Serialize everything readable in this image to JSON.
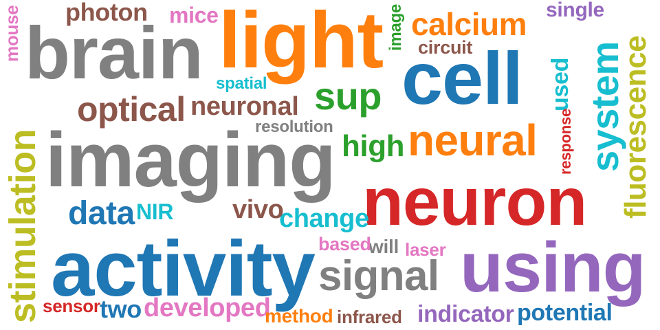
{
  "palette": {
    "gray": "#808080",
    "orange": "#ff7f0e",
    "blue": "#1f77b4",
    "red": "#d62728",
    "purple": "#9467bd",
    "green": "#2ca02c",
    "olive": "#bcbd22",
    "cyan": "#17becf",
    "brown": "#8c564b",
    "pink": "#e377c2"
  },
  "words": [
    {
      "text": "neuron",
      "color": "red"
    },
    {
      "text": "activity",
      "color": "blue"
    },
    {
      "text": "imaging",
      "color": "gray"
    },
    {
      "text": "using",
      "color": "purple"
    },
    {
      "text": "brain",
      "color": "gray"
    },
    {
      "text": "light",
      "color": "orange"
    },
    {
      "text": "cell",
      "color": "blue"
    },
    {
      "text": "signal",
      "color": "gray"
    },
    {
      "text": "neural",
      "color": "orange"
    },
    {
      "text": "stimulation",
      "color": "olive"
    },
    {
      "text": "system",
      "color": "cyan"
    },
    {
      "text": "optical",
      "color": "brown"
    },
    {
      "text": "neuronal",
      "color": "brown"
    },
    {
      "text": "fluorescence",
      "color": "olive"
    },
    {
      "text": "sup",
      "color": "green"
    },
    {
      "text": "data",
      "color": "blue"
    },
    {
      "text": "calcium",
      "color": "orange"
    },
    {
      "text": "high",
      "color": "green"
    },
    {
      "text": "change",
      "color": "cyan"
    },
    {
      "text": "developed",
      "color": "pink"
    },
    {
      "text": "two",
      "color": "blue"
    },
    {
      "text": "vivo",
      "color": "brown"
    },
    {
      "text": "photon",
      "color": "brown"
    },
    {
      "text": "indicator",
      "color": "purple"
    },
    {
      "text": "potential",
      "color": "blue"
    },
    {
      "text": "method",
      "color": "orange"
    },
    {
      "text": "mice",
      "color": "pink"
    },
    {
      "text": "single",
      "color": "purple"
    },
    {
      "text": "used",
      "color": "cyan"
    },
    {
      "text": "resolution",
      "color": "gray"
    },
    {
      "text": "circuit",
      "color": "brown"
    },
    {
      "text": "will",
      "color": "gray"
    },
    {
      "text": "infrared",
      "color": "brown"
    },
    {
      "text": "NIR",
      "color": "cyan"
    },
    {
      "text": "based",
      "color": "pink"
    },
    {
      "text": "laser",
      "color": "pink"
    },
    {
      "text": "image",
      "color": "green"
    },
    {
      "text": "sensor",
      "color": "red"
    },
    {
      "text": "spatial",
      "color": "cyan"
    },
    {
      "text": "mouse",
      "color": "pink"
    },
    {
      "text": "response",
      "color": "red"
    }
  ]
}
